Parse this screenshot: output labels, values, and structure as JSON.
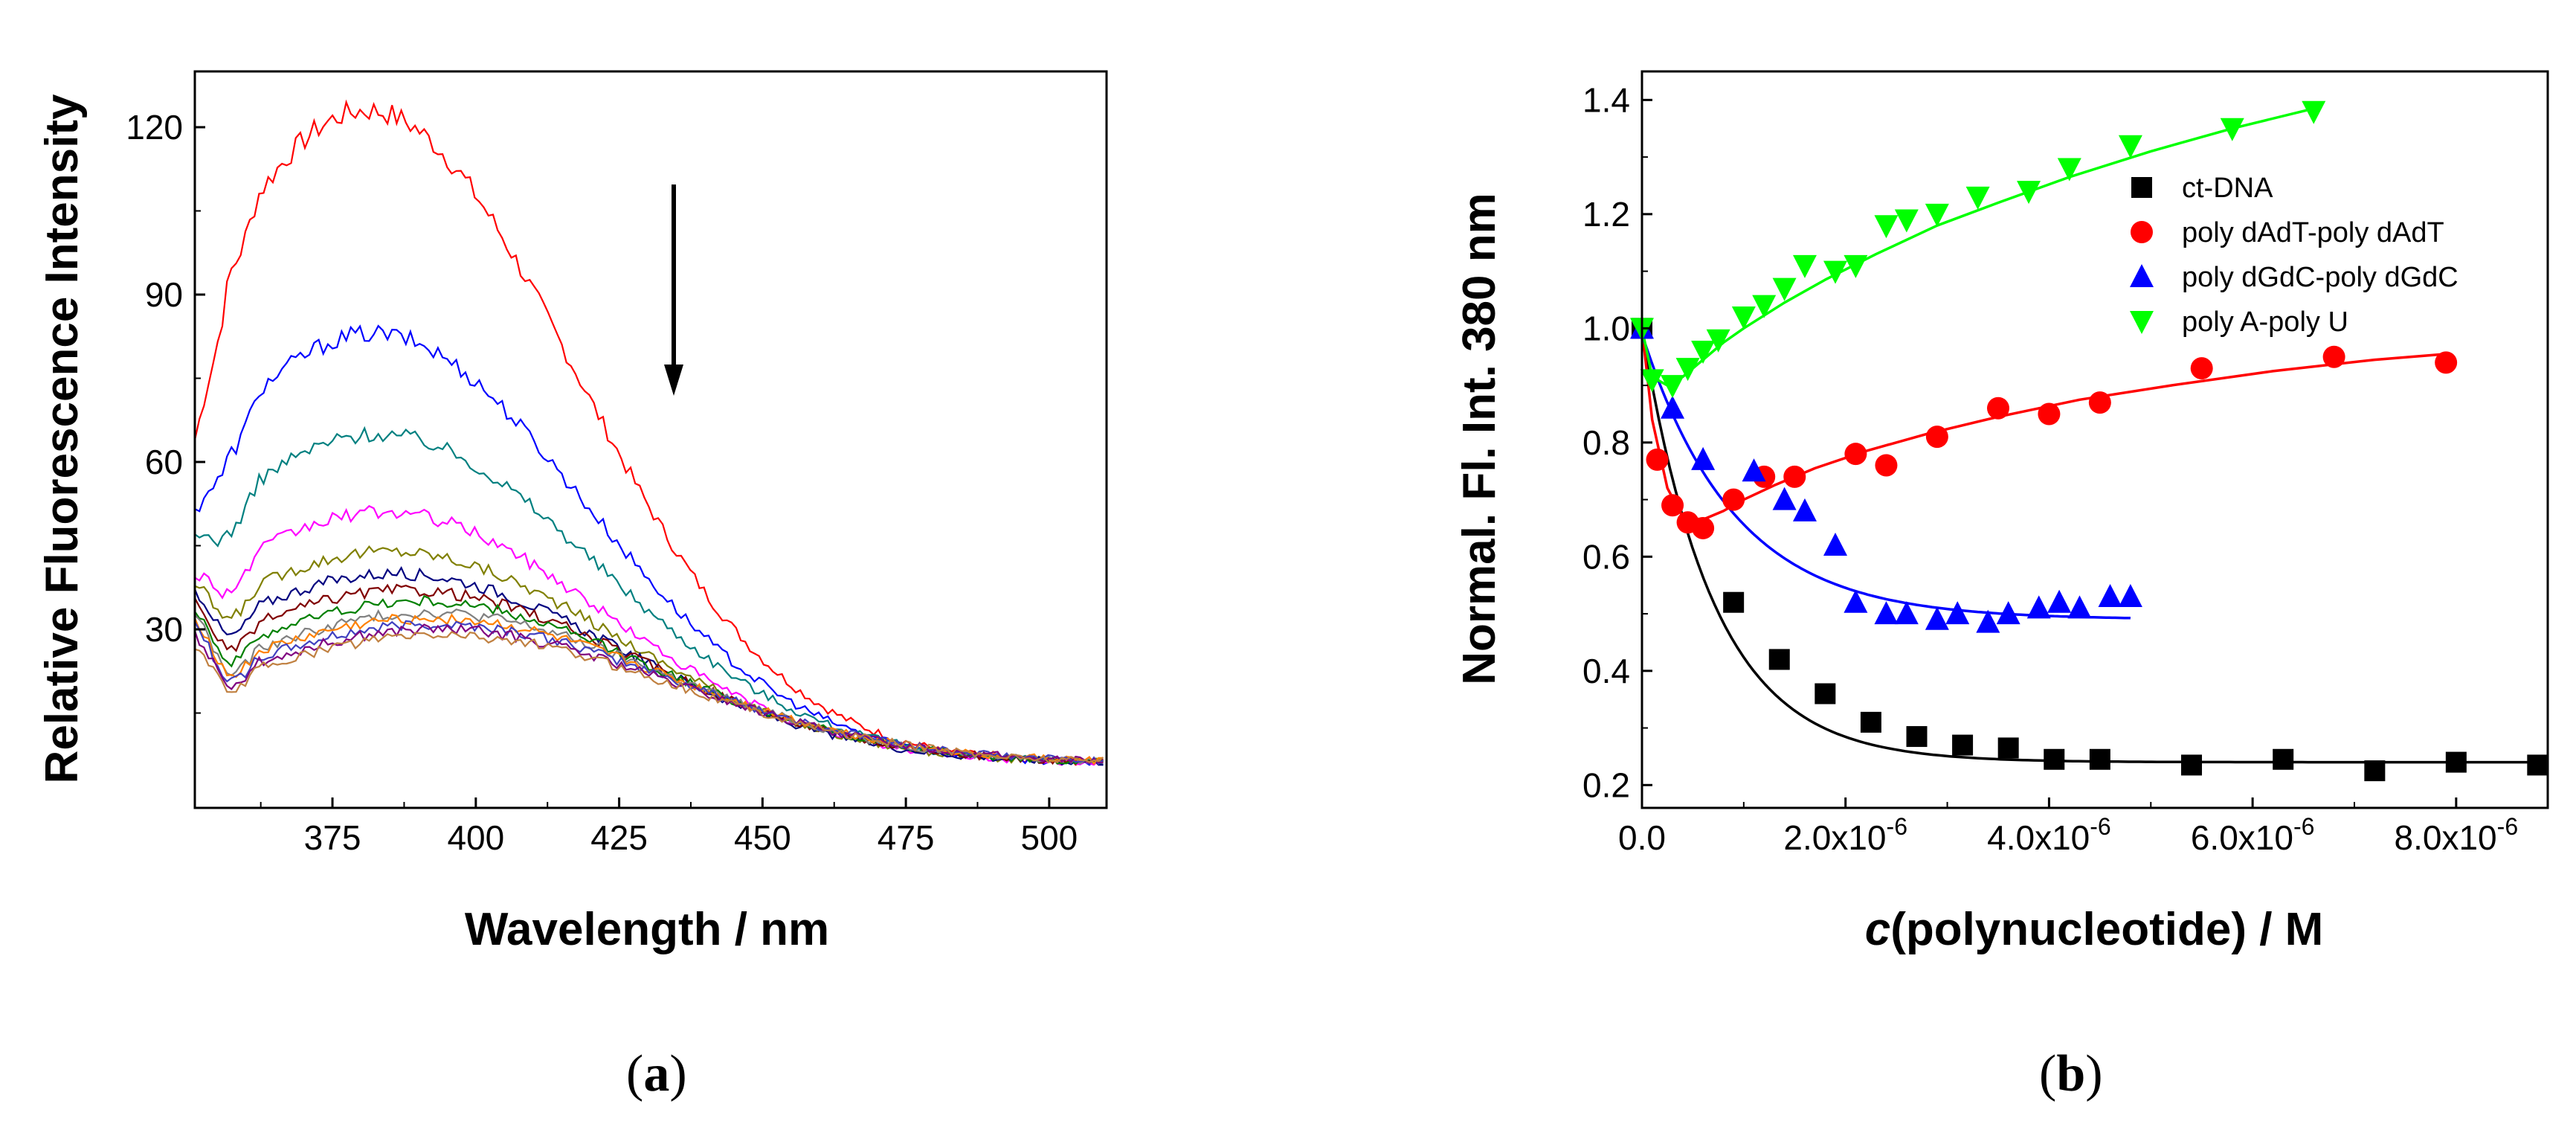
{
  "chart_data": [
    {
      "panel": "a",
      "panel_label": "a",
      "type": "line",
      "title": "",
      "xlabel": "Wavelength / nm",
      "ylabel": "Relative Fluorescence Intensity",
      "xlim": [
        351,
        510
      ],
      "ylim": [
        -2,
        130
      ],
      "xticks": [
        375,
        400,
        425,
        450,
        475,
        500
      ],
      "yticks": [
        30,
        60,
        90,
        120
      ],
      "x_tick_labels": [
        "375",
        "400",
        "425",
        "450",
        "475",
        "500"
      ],
      "y_tick_labels": [
        "30",
        "60",
        "90",
        "120"
      ],
      "annotation": "arrow indicating decreasing intensity with titration",
      "series_model": "peak near 380 nm decaying toward ~5 at 510 nm",
      "series": [
        {
          "name": "spectrum 1",
          "color": "#ff0000",
          "start": 64,
          "peak": 123,
          "peak_x": 381,
          "tail": 6,
          "sigma": 36
        },
        {
          "name": "spectrum 2",
          "color": "#0000ff",
          "start": 51,
          "peak": 83,
          "peak_x": 382,
          "tail": 6,
          "sigma": 37
        },
        {
          "name": "spectrum 3",
          "color": "#008080",
          "start": 46,
          "peak": 65,
          "peak_x": 383,
          "tail": 6,
          "sigma": 38
        },
        {
          "name": "spectrum 4",
          "color": "#ff00ff",
          "start": 40,
          "peak": 51,
          "peak_x": 384,
          "tail": 6,
          "sigma": 38
        },
        {
          "name": "spectrum 5",
          "color": "#808000",
          "start": 38,
          "peak": 44,
          "peak_x": 385,
          "tail": 6,
          "sigma": 39
        },
        {
          "name": "spectrum 6",
          "color": "#000080",
          "start": 37,
          "peak": 40,
          "peak_x": 386,
          "tail": 6,
          "sigma": 39
        },
        {
          "name": "spectrum 7",
          "color": "#800000",
          "start": 35,
          "peak": 37,
          "peak_x": 388,
          "tail": 6,
          "sigma": 40
        },
        {
          "name": "spectrum 8",
          "color": "#008000",
          "start": 34,
          "peak": 35,
          "peak_x": 390,
          "tail": 6,
          "sigma": 40
        },
        {
          "name": "spectrum 9",
          "color": "#808080",
          "start": 33,
          "peak": 33,
          "peak_x": 392,
          "tail": 6,
          "sigma": 40
        },
        {
          "name": "spectrum 10",
          "color": "#ff8000",
          "start": 32,
          "peak": 32,
          "peak_x": 392,
          "tail": 6,
          "sigma": 41
        },
        {
          "name": "spectrum 11",
          "color": "#4040c0",
          "start": 31,
          "peak": 31,
          "peak_x": 393,
          "tail": 6,
          "sigma": 41
        },
        {
          "name": "spectrum 12",
          "color": "#800080",
          "start": 29,
          "peak": 30,
          "peak_x": 393,
          "tail": 6,
          "sigma": 41
        },
        {
          "name": "spectrum 13",
          "color": "#c08040",
          "start": 27,
          "peak": 29,
          "peak_x": 394,
          "tail": 6,
          "sigma": 41
        }
      ]
    },
    {
      "panel": "b",
      "panel_label": "b",
      "type": "scatter",
      "title": "",
      "xlabel_italic": "c",
      "xlabel_rest": "(polynucleotide) / M",
      "ylabel": "Normal. Fl. Int. 380 nm",
      "xlim": [
        0,
        8.9e-06
      ],
      "ylim": [
        0.16,
        1.45
      ],
      "xticks": [
        0,
        2e-06,
        4e-06,
        6e-06,
        8e-06
      ],
      "x_tick_mantissa": [
        "0.0",
        "2.0x10",
        "4.0x10",
        "6.0x10",
        "8.0x10"
      ],
      "x_tick_exponent": [
        "",
        "-6",
        "-6",
        "-6",
        "-6"
      ],
      "yticks": [
        0.2,
        0.4,
        0.6,
        0.8,
        1.0,
        1.2,
        1.4
      ],
      "y_tick_labels": [
        "0.2",
        "0.4",
        "0.6",
        "0.8",
        "1.0",
        "1.2",
        "1.4"
      ],
      "legend_position": "top-right",
      "series": [
        {
          "name": "ct-DNA",
          "color": "#000000",
          "marker": "square",
          "x": [
            0,
            9e-07,
            1.35e-06,
            1.8e-06,
            2.25e-06,
            2.7e-06,
            3.15e-06,
            3.6e-06,
            4.05e-06,
            4.5e-06,
            5.4e-06,
            6.3e-06,
            7.2e-06,
            8e-06,
            8.8e-06
          ],
          "y": [
            1.0,
            0.52,
            0.42,
            0.36,
            0.31,
            0.285,
            0.27,
            0.265,
            0.245,
            0.245,
            0.235,
            0.245,
            0.225,
            0.24,
            0.235
          ],
          "fit": "exp_decay",
          "fit_A": 0.76,
          "fit_k": 1420000.0,
          "fit_c": 0.24,
          "fit_xmax": 8.8e-06
        },
        {
          "name": "poly dAdT-poly dAdT",
          "color": "#ff0000",
          "marker": "circle",
          "x": [
            1.5e-07,
            3e-07,
            4.5e-07,
            6e-07,
            9e-07,
            1.2e-06,
            1.5e-06,
            2.1e-06,
            2.4e-06,
            2.9e-06,
            3.5e-06,
            4e-06,
            4.5e-06,
            5.5e-06,
            6.8e-06,
            7.9e-06
          ],
          "y": [
            0.77,
            0.69,
            0.66,
            0.65,
            0.7,
            0.74,
            0.74,
            0.78,
            0.76,
            0.81,
            0.86,
            0.85,
            0.87,
            0.93,
            0.95,
            0.94
          ],
          "fit": "points",
          "fit_x": [
            0,
            1e-07,
            2.5e-07,
            4e-07,
            6e-07,
            8e-07,
            1e-06,
            1.3e-06,
            1.7e-06,
            2.2e-06,
            2.8e-06,
            3.5e-06,
            4.3e-06,
            5.2e-06,
            6.2e-06,
            7.2e-06,
            7.9e-06
          ],
          "fit_y": [
            1.0,
            0.84,
            0.72,
            0.67,
            0.665,
            0.68,
            0.7,
            0.725,
            0.755,
            0.785,
            0.815,
            0.845,
            0.875,
            0.9,
            0.925,
            0.945,
            0.955
          ]
        },
        {
          "name": "poly dGdC-poly dGdC",
          "color": "#0000ff",
          "marker": "triangle-up",
          "x": [
            0,
            3e-07,
            6e-07,
            1.1e-06,
            1.4e-06,
            1.6e-06,
            1.9e-06,
            2.1e-06,
            2.4e-06,
            2.6e-06,
            2.9e-06,
            3.1e-06,
            3.4e-06,
            3.6e-06,
            3.9e-06,
            4.1e-06,
            4.3e-06,
            4.6e-06,
            4.8e-06
          ],
          "y": [
            1.0,
            0.86,
            0.77,
            0.75,
            0.7,
            0.68,
            0.62,
            0.52,
            0.5,
            0.5,
            0.49,
            0.5,
            0.485,
            0.5,
            0.51,
            0.52,
            0.51,
            0.53,
            0.53
          ],
          "fit": "exp_decay",
          "fit_A": 0.5,
          "fit_k": 1100000.0,
          "fit_c": 0.49,
          "fit_xmax": 4.8e-06
        },
        {
          "name": "poly A-poly U",
          "color": "#00ff00",
          "marker": "triangle-down",
          "x": [
            0,
            1e-07,
            3e-07,
            4.5e-07,
            6e-07,
            7.5e-07,
            1e-06,
            1.2e-06,
            1.4e-06,
            1.6e-06,
            1.9e-06,
            2.1e-06,
            2.4e-06,
            2.6e-06,
            2.9e-06,
            3.3e-06,
            3.8e-06,
            4.2e-06,
            4.8e-06,
            5.8e-06,
            6.6e-06
          ],
          "y": [
            1.0,
            0.91,
            0.9,
            0.93,
            0.96,
            0.98,
            1.02,
            1.04,
            1.07,
            1.11,
            1.1,
            1.11,
            1.18,
            1.19,
            1.2,
            1.23,
            1.24,
            1.28,
            1.32,
            1.35,
            1.38
          ],
          "fit": "points",
          "fit_x": [
            0,
            1e-07,
            2.5e-07,
            4e-07,
            6e-07,
            8e-07,
            1e-06,
            1.4e-06,
            1.8e-06,
            2.3e-06,
            2.9e-06,
            3.5e-06,
            4.2e-06,
            5e-06,
            5.8e-06,
            6.6e-06
          ],
          "fit_y": [
            1.0,
            0.915,
            0.9,
            0.915,
            0.945,
            0.975,
            1.0,
            1.045,
            1.085,
            1.13,
            1.18,
            1.22,
            1.265,
            1.31,
            1.35,
            1.385
          ]
        }
      ]
    }
  ]
}
